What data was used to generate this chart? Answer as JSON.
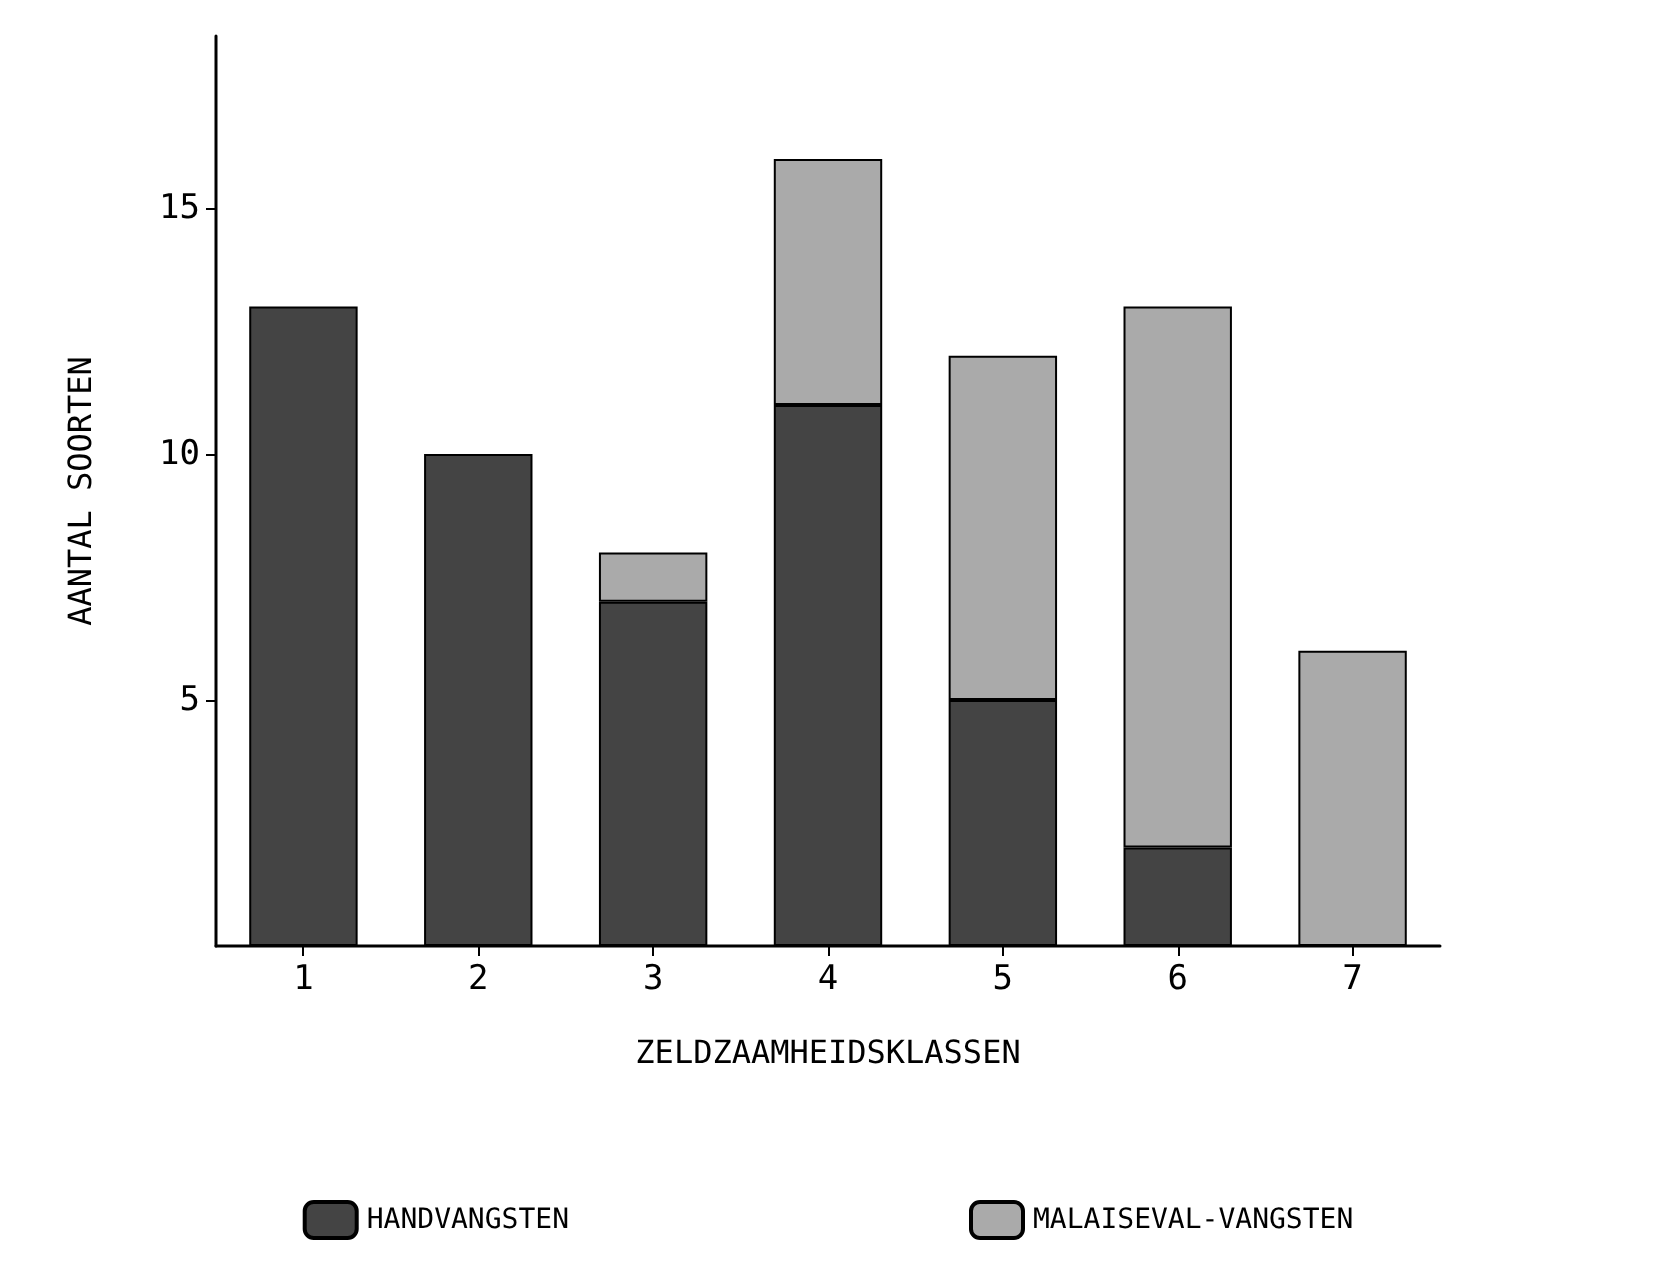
{
  "chart_data": {
    "type": "bar",
    "stacked": true,
    "xlabel": "ZELDZAAMHEIDSKLASSEN",
    "ylabel": "AANTAL SOORTEN",
    "categories": [
      "1",
      "2",
      "3",
      "4",
      "5",
      "6",
      "7"
    ],
    "series": [
      {
        "name": "HANDVANGSTEN",
        "color": "#444444",
        "values": [
          13,
          10,
          7,
          11,
          5,
          2,
          0
        ]
      },
      {
        "name": "MALAISEVAL-VANGSTEN",
        "color": "#aaaaaa",
        "values": [
          0,
          0,
          1,
          5,
          7,
          11,
          6
        ]
      }
    ],
    "ylim": [
      0,
      18.5
    ],
    "yticks": [
      5,
      10,
      15
    ],
    "grid": false,
    "legend": "bottom"
  }
}
